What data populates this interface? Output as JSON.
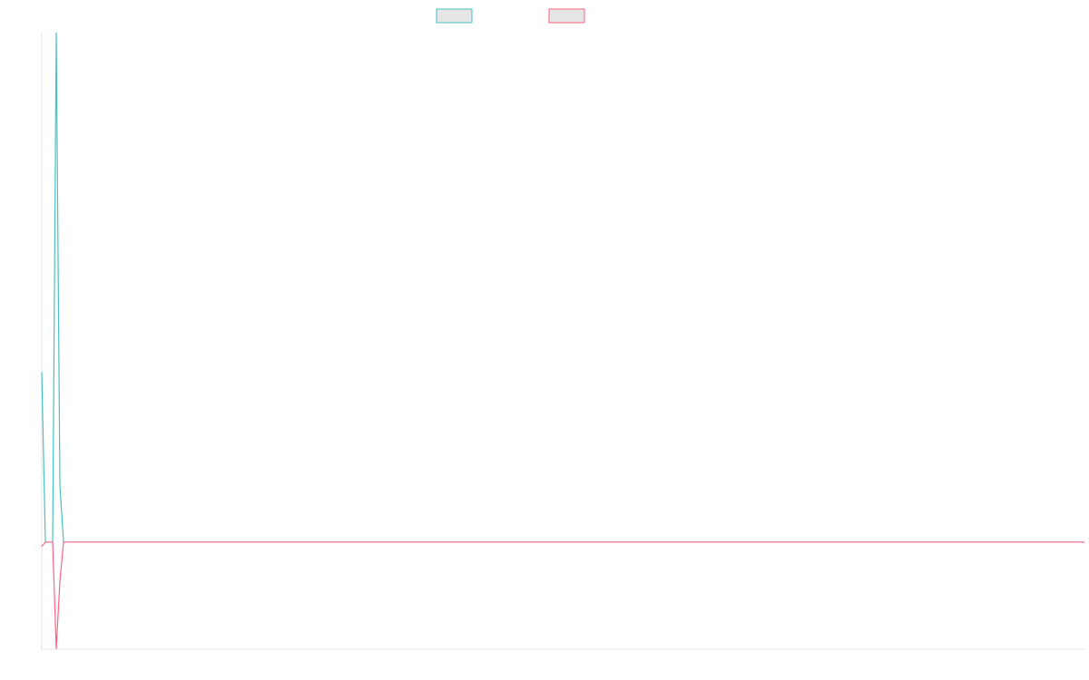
{
  "chart_data": {
    "type": "line",
    "x": [
      0,
      1,
      3,
      4,
      5,
      6,
      287
    ],
    "xlim": [
      0,
      287
    ],
    "ylim": [
      -1,
      4.76
    ],
    "series": [
      {
        "color": "#4bc0c0",
        "values": [
          1.59,
          0,
          0,
          4.76,
          0.53,
          0,
          0
        ]
      },
      {
        "color": "#ff6384",
        "values": [
          -0.04,
          0,
          0,
          -1,
          -0.36,
          0,
          0
        ]
      }
    ]
  }
}
